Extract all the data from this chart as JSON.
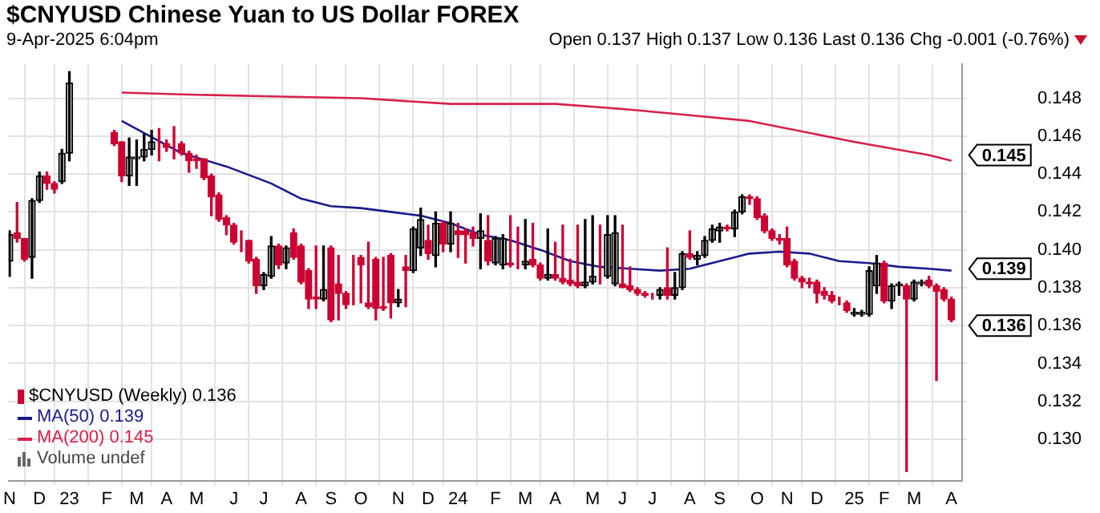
{
  "chart_data": {
    "type": "candlestick",
    "title": "$CNYUSD Chinese Yuan to US Dollar FOREX",
    "subtitle": "9-Apr-2025 6:04pm",
    "annotations": [
      "Open 0.137 High 0.137 Low 0.136 Last 0.136 Chg -0.001 (-0.76%)",
      "Volume undef",
      {
        "text": "0.145",
        "x": "2025-04-07",
        "y": 0.145
      },
      {
        "text": "0.139",
        "x": "2025-04-07",
        "y": 0.139
      },
      {
        "text": "0.136",
        "x": "2025-04-07",
        "y": 0.136
      }
    ],
    "xlim": [
      "2022-11-06",
      "2025-04-17"
    ],
    "xticks": [
      {
        "value": "2022-11-07",
        "label": "N"
      },
      {
        "value": "2022-12-05",
        "label": "D"
      },
      {
        "value": "2023-01-02",
        "label": "23"
      },
      {
        "value": "2023-02-06",
        "label": "F"
      },
      {
        "value": "2023-03-06",
        "label": "M"
      },
      {
        "value": "2023-04-03",
        "label": "A"
      },
      {
        "value": "2023-05-01",
        "label": "M"
      },
      {
        "value": "2023-06-05",
        "label": "J"
      },
      {
        "value": "2023-07-03",
        "label": "J"
      },
      {
        "value": "2023-08-07",
        "label": "A"
      },
      {
        "value": "2023-09-04",
        "label": "S"
      },
      {
        "value": "2023-10-02",
        "label": "O"
      },
      {
        "value": "2023-11-06",
        "label": "N"
      },
      {
        "value": "2023-12-04",
        "label": "D"
      },
      {
        "value": "2024-01-01",
        "label": "24"
      },
      {
        "value": "2024-02-05",
        "label": "F"
      },
      {
        "value": "2024-03-04",
        "label": "M"
      },
      {
        "value": "2024-04-01",
        "label": "A"
      },
      {
        "value": "2024-05-06",
        "label": "M"
      },
      {
        "value": "2024-06-03",
        "label": "J"
      },
      {
        "value": "2024-07-01",
        "label": "J"
      },
      {
        "value": "2024-08-05",
        "label": "A"
      },
      {
        "value": "2024-09-02",
        "label": "S"
      },
      {
        "value": "2024-10-07",
        "label": "O"
      },
      {
        "value": "2024-11-04",
        "label": "N"
      },
      {
        "value": "2024-12-02",
        "label": "D"
      },
      {
        "value": "2025-01-06",
        "label": "25"
      },
      {
        "value": "2025-02-03",
        "label": "F"
      },
      {
        "value": "2025-03-03",
        "label": "M"
      },
      {
        "value": "2025-04-07",
        "label": "A"
      }
    ],
    "ylim": [
      0.1278,
      0.1498
    ],
    "yticks": [
      {
        "value": 0.13,
        "label": "0.130"
      },
      0.132,
      0.134,
      0.136,
      0.138,
      {
        "value": 0.14,
        "label": "0.140"
      },
      0.142,
      0.144,
      0.146,
      0.148
    ],
    "grid": true,
    "legend": "bottom left",
    "series": [
      {
        "name": "$CNYUSD (Weekly) 0.136",
        "colors": [
          "#000000",
          "#cc0033",
          "#cc0033",
          "#000000",
          "#000000",
          "#cc0033",
          "#cc0033",
          "#000000",
          "#000000",
          "#cc0033",
          "#cc0033",
          "#000000",
          "#000000",
          "#000000",
          "#000000",
          "#cc0033",
          "#cc0033",
          "#cc0033",
          "#cc0033",
          "#cc0033",
          "#cc0033",
          "#cc0033",
          "#cc0033",
          "#cc0033",
          "#cc0033",
          "#cc0033",
          "#cc0033",
          "#cc0033",
          "#cc0033",
          "#000000",
          "#000000",
          "#cc0033",
          "#000000",
          "#cc0033",
          "#cc0033",
          "#cc0033",
          "#cc0033",
          "#000000",
          "#cc0033",
          "#cc0033",
          "#cc0033",
          "#cc0033",
          "#cc0033",
          "#cc0033",
          "#cc0033",
          "#cc0033",
          "#cc0033",
          "#000000",
          "#cc0033",
          "#000000",
          "#000000",
          "#cc0033",
          "#000000",
          "#cc0033",
          "#000000",
          "#cc0033",
          "#cc0033",
          "#cc0033",
          "#000000",
          "#cc0033",
          "#000000",
          "#000000",
          "#cc0033",
          "#cc0033",
          "#000000",
          "#cc0033",
          "#cc0033",
          "#000000",
          "#cc0033",
          "#cc0033",
          "#cc0033",
          "#cc0033",
          "#000000",
          "#000000",
          "#cc0033",
          "#000000",
          "#000000",
          "#cc0033",
          "#cc0033",
          "#cc0033",
          "#cc0033",
          "#cc0033",
          "#000000",
          "#cc0033",
          "#000000",
          "#000000",
          "#cc0033",
          "#000000",
          "#000000",
          "#000000",
          "#000000",
          "#cc0033",
          "#000000",
          "#000000",
          "#cc0033",
          "#cc0033",
          "#cc0033",
          "#cc0033",
          "#cc0033",
          "#cc0033",
          "#cc0033",
          "#cc0033",
          "#cc0033",
          "#cc0033",
          "#cc0033",
          "#cc0033",
          "#cc0033",
          "#cc0033",
          "#000000",
          "#000000",
          "#000000",
          "#000000",
          "#cc0033",
          "#000000",
          "#000000",
          "#cc0033",
          "#000000",
          "#000000",
          "#cc0033",
          "#cc0033",
          "#cc0033",
          "#cc0033"
        ],
        "x": [
          "2022-11-07",
          "2022-11-14",
          "2022-11-21",
          "2022-11-28",
          "2022-12-05",
          "2022-12-12",
          "2022-12-19",
          "2022-12-26",
          "2023-01-02",
          "2023-02-13",
          "2023-02-20",
          "2023-02-27",
          "2023-03-06",
          "2023-03-13",
          "2023-03-20",
          "2023-03-27",
          "2023-04-03",
          "2023-04-10",
          "2023-04-17",
          "2023-04-24",
          "2023-05-01",
          "2023-05-08",
          "2023-05-15",
          "2023-05-22",
          "2023-05-29",
          "2023-06-05",
          "2023-06-12",
          "2023-06-19",
          "2023-06-26",
          "2023-07-03",
          "2023-07-10",
          "2023-07-17",
          "2023-07-24",
          "2023-07-31",
          "2023-08-07",
          "2023-08-14",
          "2023-08-21",
          "2023-08-28",
          "2023-09-04",
          "2023-09-11",
          "2023-09-18",
          "2023-09-25",
          "2023-10-02",
          "2023-10-09",
          "2023-10-16",
          "2023-10-23",
          "2023-10-30",
          "2023-11-06",
          "2023-11-13",
          "2023-11-20",
          "2023-11-27",
          "2023-12-04",
          "2023-12-11",
          "2023-12-18",
          "2023-12-25",
          "2024-01-01",
          "2024-01-08",
          "2024-01-15",
          "2024-01-22",
          "2024-01-29",
          "2024-02-05",
          "2024-02-12",
          "2024-02-19",
          "2024-02-26",
          "2024-03-04",
          "2024-03-11",
          "2024-03-18",
          "2024-03-25",
          "2024-04-01",
          "2024-04-08",
          "2024-04-15",
          "2024-04-22",
          "2024-04-29",
          "2024-05-06",
          "2024-05-13",
          "2024-05-20",
          "2024-05-27",
          "2024-06-03",
          "2024-06-10",
          "2024-06-17",
          "2024-06-24",
          "2024-07-01",
          "2024-07-08",
          "2024-07-15",
          "2024-07-22",
          "2024-07-29",
          "2024-08-05",
          "2024-08-12",
          "2024-08-19",
          "2024-08-26",
          "2024-09-02",
          "2024-09-09",
          "2024-09-16",
          "2024-09-23",
          "2024-09-30",
          "2024-10-07",
          "2024-10-14",
          "2024-10-21",
          "2024-10-28",
          "2024-11-04",
          "2024-11-11",
          "2024-11-18",
          "2024-11-25",
          "2024-12-02",
          "2024-12-09",
          "2024-12-16",
          "2024-12-23",
          "2024-12-30",
          "2025-01-06",
          "2025-01-13",
          "2025-01-20",
          "2025-01-27",
          "2025-02-03",
          "2025-02-10",
          "2025-02-17",
          "2025-02-24",
          "2025-03-03",
          "2025-03-10",
          "2025-03-17",
          "2025-03-24",
          "2025-03-31",
          "2025-04-07"
        ],
        "ohlc": [
          [
            0.1394,
            0.141,
            0.1386,
            0.1408
          ],
          [
            0.1409,
            0.1425,
            0.1404,
            0.1406
          ],
          [
            0.1406,
            0.1406,
            0.1394,
            0.1395
          ],
          [
            0.1396,
            0.1427,
            0.1385,
            0.1426
          ],
          [
            0.1426,
            0.1441,
            0.1425,
            0.1439
          ],
          [
            0.1439,
            0.1441,
            0.1432,
            0.1435
          ],
          [
            0.1435,
            0.1436,
            0.143,
            0.1432
          ],
          [
            0.1436,
            0.1453,
            0.1435,
            0.1451
          ],
          [
            0.1451,
            0.1494,
            0.1447,
            0.1488
          ],
          [
            0.1462,
            0.1463,
            0.1455,
            0.1456
          ],
          [
            0.1457,
            0.1457,
            0.1436,
            0.1439
          ],
          [
            0.1439,
            0.1459,
            0.1434,
            0.1449
          ],
          [
            0.1448,
            0.1458,
            0.1434,
            0.1449
          ],
          [
            0.1449,
            0.1461,
            0.1447,
            0.1453
          ],
          [
            0.1453,
            0.1463,
            0.145,
            0.1457
          ],
          [
            0.1456,
            0.1464,
            0.1447,
            0.1456
          ],
          [
            0.1456,
            0.1458,
            0.1452,
            0.1454
          ],
          [
            0.1456,
            0.1465,
            0.1448,
            0.1456
          ],
          [
            0.1456,
            0.1457,
            0.145,
            0.1451
          ],
          [
            0.1451,
            0.1452,
            0.1441,
            0.1447
          ],
          [
            0.1448,
            0.145,
            0.1443,
            0.1447
          ],
          [
            0.1448,
            0.1448,
            0.1437,
            0.1438
          ],
          [
            0.1439,
            0.144,
            0.1418,
            0.1428
          ],
          [
            0.1429,
            0.143,
            0.1415,
            0.1416
          ],
          [
            0.1417,
            0.1418,
            0.1408,
            0.1413
          ],
          [
            0.1413,
            0.1414,
            0.1403,
            0.1404
          ],
          [
            0.1404,
            0.141,
            0.1399,
            0.1404
          ],
          [
            0.1405,
            0.1405,
            0.1393,
            0.1394
          ],
          [
            0.1395,
            0.1396,
            0.1377,
            0.1381
          ],
          [
            0.1381,
            0.1388,
            0.1379,
            0.1387
          ],
          [
            0.1386,
            0.1407,
            0.1385,
            0.1402
          ],
          [
            0.1402,
            0.1403,
            0.139,
            0.1392
          ],
          [
            0.1393,
            0.1402,
            0.139,
            0.1401
          ],
          [
            0.1409,
            0.1411,
            0.1395,
            0.1396
          ],
          [
            0.1402,
            0.1403,
            0.1382,
            0.1383
          ],
          [
            0.1389,
            0.139,
            0.1369,
            0.1374
          ],
          [
            0.1375,
            0.1402,
            0.1369,
            0.1374
          ],
          [
            0.1374,
            0.1402,
            0.1373,
            0.1379
          ],
          [
            0.1401,
            0.1402,
            0.1362,
            0.1363
          ],
          [
            0.1382,
            0.1397,
            0.1363,
            0.1377
          ],
          [
            0.1377,
            0.1378,
            0.1369,
            0.1371
          ],
          [
            0.1373,
            0.1397,
            0.1371,
            0.1373
          ],
          [
            0.1396,
            0.1397,
            0.1372,
            0.1392
          ],
          [
            0.1372,
            0.1404,
            0.1369,
            0.137
          ],
          [
            0.1395,
            0.1396,
            0.1363,
            0.1369
          ],
          [
            0.137,
            0.1396,
            0.1368,
            0.1369
          ],
          [
            0.1397,
            0.1398,
            0.1364,
            0.1372
          ],
          [
            0.1372,
            0.1379,
            0.137,
            0.1374
          ],
          [
            0.1391,
            0.1397,
            0.137,
            0.1389
          ],
          [
            0.1389,
            0.1412,
            0.1388,
            0.1411
          ],
          [
            0.1401,
            0.1422,
            0.1397,
            0.1416
          ],
          [
            0.1405,
            0.1413,
            0.1395,
            0.1398
          ],
          [
            0.1397,
            0.142,
            0.1391,
            0.1414
          ],
          [
            0.1414,
            0.1415,
            0.1399,
            0.1403
          ],
          [
            0.1403,
            0.142,
            0.1399,
            0.1414
          ],
          [
            0.141,
            0.1414,
            0.1396,
            0.1408
          ],
          [
            0.141,
            0.1411,
            0.1393,
            0.1408
          ],
          [
            0.1409,
            0.1412,
            0.1402,
            0.1406
          ],
          [
            0.1406,
            0.1419,
            0.139,
            0.141
          ],
          [
            0.1405,
            0.1418,
            0.1392,
            0.1394
          ],
          [
            0.1393,
            0.1407,
            0.1392,
            0.1406
          ],
          [
            0.1392,
            0.1408,
            0.139,
            0.1406
          ],
          [
            0.1393,
            0.1418,
            0.1391,
            0.1392
          ],
          [
            0.1392,
            0.1412,
            0.139,
            0.1392
          ],
          [
            0.1392,
            0.1416,
            0.139,
            0.1394
          ],
          [
            0.1395,
            0.1414,
            0.1391,
            0.1392
          ],
          [
            0.1392,
            0.1393,
            0.1384,
            0.1385
          ],
          [
            0.1385,
            0.1411,
            0.1384,
            0.1387
          ],
          [
            0.1387,
            0.1404,
            0.1384,
            0.1385
          ],
          [
            0.1385,
            0.1413,
            0.1382,
            0.1383
          ],
          [
            0.1384,
            0.1395,
            0.1381,
            0.1382
          ],
          [
            0.1383,
            0.1413,
            0.138,
            0.1381
          ],
          [
            0.1381,
            0.1416,
            0.138,
            0.1383
          ],
          [
            0.1383,
            0.1418,
            0.1382,
            0.1386
          ],
          [
            0.1386,
            0.1413,
            0.1382,
            0.1386
          ],
          [
            0.1386,
            0.1418,
            0.1385,
            0.1408
          ],
          [
            0.1382,
            0.1418,
            0.1381,
            0.1409
          ],
          [
            0.1382,
            0.1413,
            0.138,
            0.138
          ],
          [
            0.1381,
            0.1391,
            0.1378,
            0.1379
          ],
          [
            0.1379,
            0.138,
            0.1376,
            0.1377
          ],
          [
            0.1377,
            0.1378,
            0.1375,
            0.1376
          ],
          [
            0.1376,
            0.1377,
            0.1374,
            0.1376
          ],
          [
            0.1376,
            0.138,
            0.1374,
            0.1379
          ],
          [
            0.138,
            0.1401,
            0.1374,
            0.1376
          ],
          [
            0.1376,
            0.1388,
            0.1374,
            0.138
          ],
          [
            0.138,
            0.1399,
            0.1379,
            0.1398
          ],
          [
            0.1398,
            0.141,
            0.1395,
            0.1396
          ],
          [
            0.1395,
            0.1399,
            0.1392,
            0.1397
          ],
          [
            0.1397,
            0.1407,
            0.1396,
            0.1405
          ],
          [
            0.1405,
            0.1413,
            0.1404,
            0.1411
          ],
          [
            0.141,
            0.1414,
            0.1404,
            0.1412
          ],
          [
            0.1412,
            0.1413,
            0.141,
            0.1411
          ],
          [
            0.1411,
            0.1421,
            0.1407,
            0.142
          ],
          [
            0.142,
            0.1429,
            0.1419,
            0.1428
          ],
          [
            0.1428,
            0.1429,
            0.1424,
            0.1427
          ],
          [
            0.1427,
            0.1428,
            0.1416,
            0.1417
          ],
          [
            0.1418,
            0.1419,
            0.1409,
            0.141
          ],
          [
            0.141,
            0.1411,
            0.1405,
            0.1406
          ],
          [
            0.1406,
            0.1408,
            0.1403,
            0.1405
          ],
          [
            0.1406,
            0.1412,
            0.1391,
            0.1392
          ],
          [
            0.1394,
            0.1395,
            0.1384,
            0.1385
          ],
          [
            0.1385,
            0.1386,
            0.138,
            0.1383
          ],
          [
            0.1383,
            0.1385,
            0.138,
            0.1382
          ],
          [
            0.1383,
            0.1384,
            0.1372,
            0.1377
          ],
          [
            0.1378,
            0.138,
            0.1374,
            0.1376
          ],
          [
            0.1376,
            0.1378,
            0.1372,
            0.1373
          ],
          [
            0.1373,
            0.1375,
            0.1371,
            0.1373
          ],
          [
            0.1372,
            0.1373,
            0.1367,
            0.1368
          ],
          [
            0.1366,
            0.1369,
            0.1365,
            0.1367
          ],
          [
            0.1366,
            0.1368,
            0.1365,
            0.1367
          ],
          [
            0.1366,
            0.1391,
            0.1365,
            0.1389
          ],
          [
            0.1381,
            0.1397,
            0.1377,
            0.1393
          ],
          [
            0.1393,
            0.1394,
            0.1372,
            0.1373
          ],
          [
            0.1373,
            0.1382,
            0.1369,
            0.1381
          ],
          [
            0.1381,
            0.1383,
            0.1376,
            0.1382
          ],
          [
            0.1381,
            0.1382,
            0.1283,
            0.1374
          ],
          [
            0.1374,
            0.1384,
            0.1373,
            0.1383
          ],
          [
            0.1382,
            0.1384,
            0.1381,
            0.1383
          ],
          [
            0.1384,
            0.1386,
            0.138,
            0.1381
          ],
          [
            0.1381,
            0.1382,
            0.1331,
            0.1378
          ],
          [
            0.1379,
            0.138,
            0.1373,
            0.1374
          ],
          [
            0.1374,
            0.1375,
            0.1362,
            0.1363
          ]
        ]
      },
      {
        "type": "line",
        "name": "MA(50) 0.139",
        "color": "#1a1a8c",
        "x": [
          "2023-02-20",
          "2023-04-17",
          "2023-05-29",
          "2023-07-10",
          "2023-08-07",
          "2023-09-04",
          "2023-10-02",
          "2023-10-30",
          "2023-11-27",
          "2023-12-25",
          "2024-01-22",
          "2024-02-19",
          "2024-03-18",
          "2024-04-15",
          "2024-05-13",
          "2024-06-10",
          "2024-07-08",
          "2024-08-05",
          "2024-09-02",
          "2024-09-30",
          "2024-10-28",
          "2024-11-25",
          "2024-12-23",
          "2025-01-20",
          "2025-02-17",
          "2025-03-17",
          "2025-04-07"
        ],
        "values": [
          0.1468,
          0.1451,
          0.1444,
          0.1435,
          0.1427,
          0.1423,
          0.1422,
          0.142,
          0.1418,
          0.1414,
          0.1408,
          0.1405,
          0.14,
          0.1394,
          0.1391,
          0.139,
          0.1389,
          0.139,
          0.1394,
          0.1398,
          0.1399,
          0.1398,
          0.1394,
          0.1393,
          0.1391,
          0.139,
          0.1389
        ]
      },
      {
        "type": "line",
        "name": "MA(200) 0.145",
        "color": "#d6214a",
        "x": [
          "2023-02-20",
          "2023-04-17",
          "2023-07-10",
          "2023-10-02",
          "2023-12-25",
          "2024-04-01",
          "2024-06-10",
          "2024-08-05",
          "2024-09-30",
          "2025-01-06",
          "2025-03-17",
          "2025-04-07"
        ],
        "values": [
          0.1483,
          0.1482,
          0.1481,
          0.148,
          0.1477,
          0.1477,
          0.1474,
          0.1471,
          0.1468,
          0.1457,
          0.145,
          0.1447
        ]
      }
    ]
  }
}
